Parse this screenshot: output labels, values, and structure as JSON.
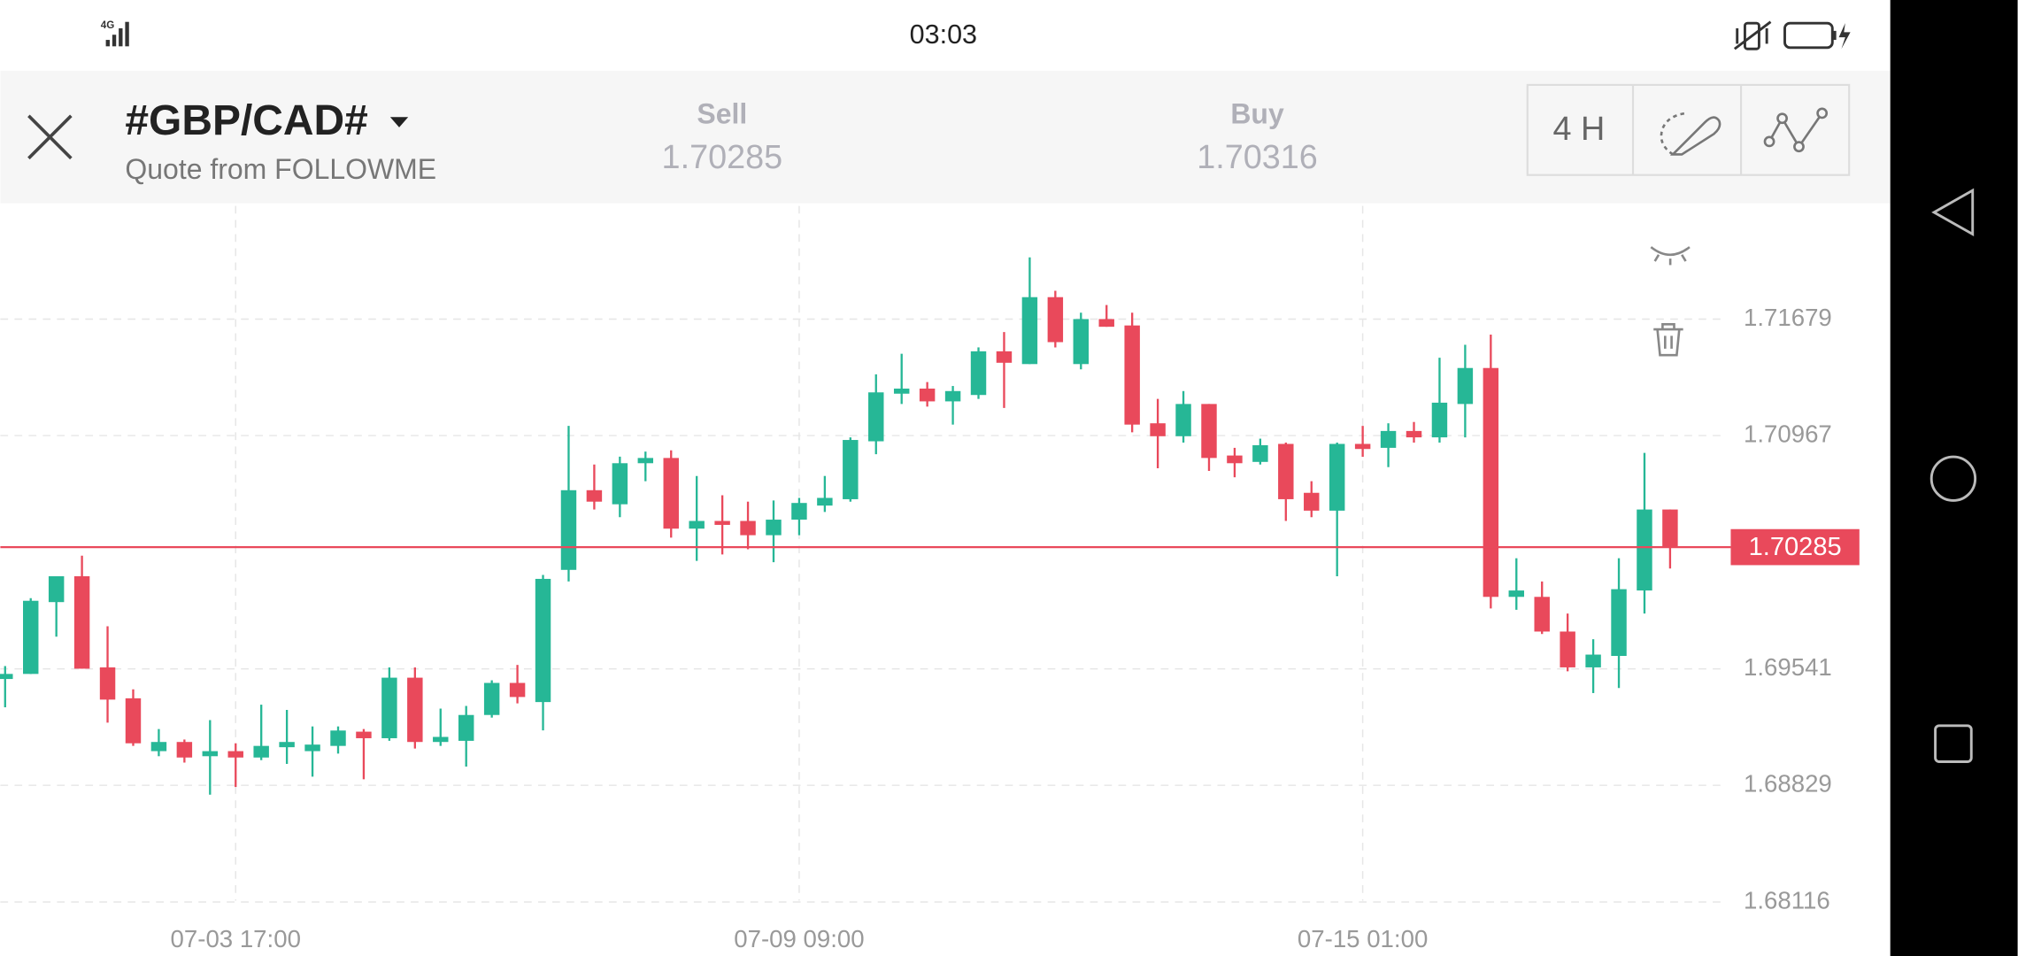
{
  "status_bar": {
    "network": "4G",
    "time": "03:03"
  },
  "header": {
    "symbol": "#GBP/CAD#",
    "source": "Quote from FOLLOWME",
    "sell_label": "Sell",
    "sell_price": "1.70285",
    "buy_label": "Buy",
    "buy_price": "1.70316",
    "timeframe": "4 H"
  },
  "chart_data": {
    "type": "candlestick",
    "categories": [
      null,
      null,
      null,
      null,
      null,
      null,
      null,
      null,
      null,
      "07-03 17:00",
      null,
      null,
      null,
      null,
      null,
      null,
      null,
      null,
      null,
      null,
      null,
      null,
      null,
      null,
      null,
      null,
      null,
      null,
      null,
      null,
      null,
      "07-09 09:00",
      null,
      null,
      null,
      null,
      null,
      null,
      null,
      null,
      null,
      null,
      null,
      null,
      null,
      null,
      null,
      null,
      null,
      null,
      null,
      null,
      null,
      "07-15 01:00",
      null,
      null,
      null,
      null,
      null,
      null,
      null,
      null,
      null,
      null,
      null,
      null
    ],
    "open": [
      1.69479,
      1.6951,
      1.69949,
      1.70107,
      1.6955,
      1.69361,
      1.69038,
      1.69094,
      1.69007,
      1.69038,
      1.68999,
      1.69062,
      1.69038,
      1.6907,
      1.69157,
      1.69117,
      1.69487,
      1.69094,
      1.69101,
      1.69259,
      1.69455,
      1.69338,
      1.70146,
      1.70633,
      1.70547,
      1.70798,
      1.7083,
      1.70398,
      1.70445,
      1.70445,
      1.70358,
      1.70453,
      1.70539,
      1.70578,
      1.70932,
      1.71223,
      1.71254,
      1.71176,
      1.71215,
      1.71482,
      1.71404,
      1.71813,
      1.71404,
      1.71679,
      1.7164,
      1.71042,
      1.70963,
      1.7116,
      1.70845,
      1.70806,
      1.70916,
      1.70617,
      1.70508,
      1.70916,
      1.70892,
      1.70995,
      1.70956,
      1.7116,
      1.7138,
      1.69981,
      1.69981,
      1.69769,
      1.6955,
      1.6962,
      1.7002,
      1.70515
    ],
    "high": [
      1.69558,
      1.69973,
      1.70107,
      1.70233,
      1.69801,
      1.69416,
      1.69173,
      1.69109,
      1.69228,
      1.69086,
      1.69322,
      1.6929,
      1.69189,
      1.69189,
      1.69173,
      1.6955,
      1.6955,
      1.69298,
      1.69314,
      1.69471,
      1.69565,
      1.70115,
      1.71026,
      1.7079,
      1.70838,
      1.70869,
      1.70877,
      1.7072,
      1.70602,
      1.70563,
      1.7057,
      1.70586,
      1.7072,
      1.70956,
      1.71341,
      1.71467,
      1.71294,
      1.7127,
      1.71506,
      1.716,
      1.72056,
      1.71852,
      1.71718,
      1.71765,
      1.71718,
      1.71191,
      1.71239,
      1.7116,
      1.70892,
      1.70948,
      1.70924,
      1.70688,
      1.70924,
      1.71026,
      1.71042,
      1.7105,
      1.71443,
      1.71522,
      1.71584,
      1.70217,
      1.70075,
      1.69879,
      1.69722,
      1.70217,
      1.70861,
      1.70515
    ],
    "low": [
      1.69306,
      1.6951,
      1.69738,
      1.69542,
      1.69212,
      1.6907,
      1.69007,
      1.68968,
      1.68772,
      1.68819,
      1.68983,
      1.6896,
      1.68882,
      1.69023,
      1.68866,
      1.69101,
      1.69054,
      1.6907,
      1.68944,
      1.69243,
      1.6933,
      1.69165,
      1.70075,
      1.70515,
      1.70468,
      1.70688,
      1.70343,
      1.70201,
      1.7024,
      1.70272,
      1.70193,
      1.70358,
      1.705,
      1.70563,
      1.70853,
      1.7116,
      1.71144,
      1.71034,
      1.71191,
      1.71136,
      1.71404,
      1.71506,
      1.71372,
      1.71632,
      1.70987,
      1.70767,
      1.70924,
      1.70751,
      1.70712,
      1.7079,
      1.70445,
      1.70468,
      1.70107,
      1.70837,
      1.70774,
      1.70924,
      1.70924,
      1.70956,
      1.6991,
      1.69902,
      1.69754,
      1.69526,
      1.69393,
      1.69424,
      1.69879,
      1.70154
    ],
    "close": [
      1.6951,
      1.69957,
      1.70107,
      1.69542,
      1.69353,
      1.69086,
      1.69094,
      1.68999,
      1.69038,
      1.68999,
      1.6907,
      1.69094,
      1.69078,
      1.69164,
      1.69117,
      1.69487,
      1.69094,
      1.69125,
      1.69259,
      1.69455,
      1.69369,
      1.70091,
      1.70633,
      1.70563,
      1.70798,
      1.7083,
      1.70398,
      1.70445,
      1.70421,
      1.70358,
      1.70453,
      1.70555,
      1.70586,
      1.7094,
      1.71231,
      1.71254,
      1.71176,
      1.71239,
      1.71482,
      1.71412,
      1.71813,
      1.71538,
      1.71679,
      1.71632,
      1.71034,
      1.70963,
      1.7116,
      1.7083,
      1.70798,
      1.70908,
      1.70578,
      1.70508,
      1.70916,
      1.70885,
      1.70995,
      1.70956,
      1.71168,
      1.7138,
      1.69981,
      1.7002,
      1.69769,
      1.6955,
      1.69628,
      1.70028,
      1.70515,
      1.70285
    ],
    "up_color": "#26b796",
    "down_color": "#e9495b",
    "ylim": [
      1.68006,
      1.72371
    ],
    "yticks": [
      1.68116,
      1.68829,
      1.69541,
      1.70967,
      1.71679
    ],
    "current_price": 1.70285,
    "current_price_color": "#e9495b",
    "grid": true
  }
}
